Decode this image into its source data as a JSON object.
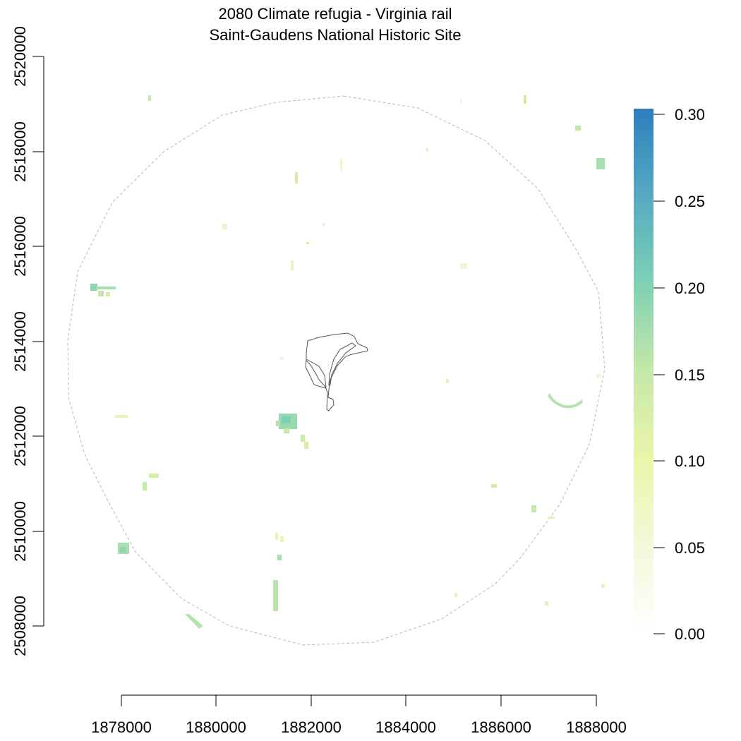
{
  "map": {
    "title_line1": "2080 Climate refugia - Virginia rail",
    "title_line2": "Saint-Gaudens National Historic Site"
  },
  "axes": {
    "x_ticks": [
      "1878000",
      "1880000",
      "1882000",
      "1884000",
      "1886000",
      "1888000"
    ],
    "y_ticks": [
      "2520000",
      "2518000",
      "2516000",
      "2514000",
      "2512000",
      "2510000",
      "2508000"
    ]
  },
  "legend": {
    "labels": [
      "0.30",
      "0.25",
      "0.20",
      "0.15",
      "0.10",
      "0.05",
      "0.00"
    ],
    "colors": [
      "#ffffff",
      "#f0f7c8",
      "#e9f7a8",
      "#c5e8a8",
      "#7ed0b4",
      "#56abc2",
      "#2f7ebc"
    ]
  },
  "layers": {
    "buffer_boundary": "circular study-area buffer (dashed)",
    "park_boundary": "site boundary polygon",
    "refugia_patches": "small raster patches of refugia suitability values 0.00–0.30"
  }
}
